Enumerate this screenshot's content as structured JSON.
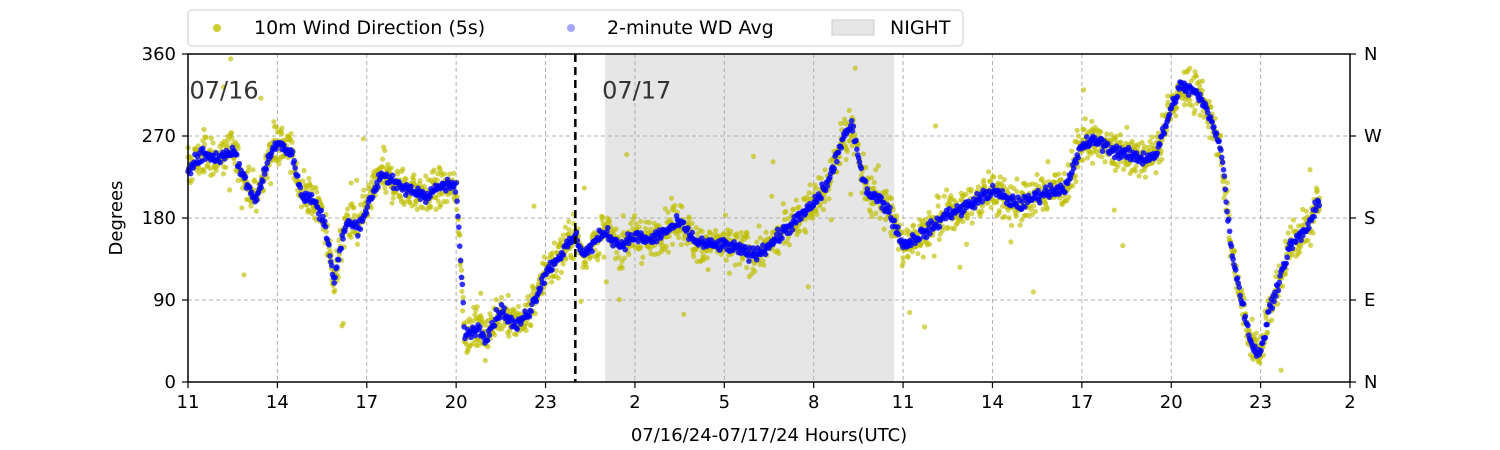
{
  "chart_data": {
    "type": "scatter",
    "xlabel": "07/16/24-07/17/24  Hours(UTC)",
    "ylabel": "Degrees",
    "x_unit": "hour_of_07/16 (UTC)",
    "xlim": [
      11,
      50
    ],
    "ylim": [
      0,
      360
    ],
    "x_tick_values": [
      11,
      14,
      17,
      20,
      23,
      26,
      29,
      32,
      35,
      38,
      41,
      44,
      47,
      50
    ],
    "x_tick_labels": [
      "11",
      "14",
      "17",
      "20",
      "23",
      "2",
      "5",
      "8",
      "11",
      "14",
      "17",
      "20",
      "23",
      "2"
    ],
    "y_ticks": [
      0,
      90,
      180,
      270,
      360
    ],
    "y_right_tick_labels": [
      "N",
      "E",
      "S",
      "W",
      "N"
    ],
    "grid": true,
    "legend_placement": "top",
    "date_annotations": [
      {
        "text": "07/16",
        "x": 11.05,
        "y": 320
      },
      {
        "text": "07/17",
        "x": 24.9,
        "y": 320
      }
    ],
    "day_divider_x": 24.0,
    "night_span": [
      25.0,
      34.7
    ],
    "legend": {
      "series1": "10m Wind Direction (5s)",
      "series2": "2-minute WD Avg",
      "night": "NIGHT"
    },
    "colors": {
      "wd5s": "#bfbf00",
      "avg": "#0000ff",
      "night": "#e6e6e6",
      "divider": "#000000"
    },
    "trend": [
      [
        11.0,
        235
      ],
      [
        11.5,
        250
      ],
      [
        12.0,
        245
      ],
      [
        12.5,
        255
      ],
      [
        13.0,
        215
      ],
      [
        13.3,
        200
      ],
      [
        13.7,
        245
      ],
      [
        14.0,
        265
      ],
      [
        14.5,
        250
      ],
      [
        14.8,
        205
      ],
      [
        15.2,
        200
      ],
      [
        15.6,
        175
      ],
      [
        15.9,
        110
      ],
      [
        16.3,
        175
      ],
      [
        16.7,
        170
      ],
      [
        17.0,
        190
      ],
      [
        17.5,
        230
      ],
      [
        18.0,
        215
      ],
      [
        18.5,
        210
      ],
      [
        19.0,
        205
      ],
      [
        19.5,
        215
      ],
      [
        20.0,
        215
      ],
      [
        20.3,
        50
      ],
      [
        20.7,
        60
      ],
      [
        21.0,
        50
      ],
      [
        21.5,
        80
      ],
      [
        22.0,
        60
      ],
      [
        22.5,
        80
      ],
      [
        23.0,
        120
      ],
      [
        23.5,
        140
      ],
      [
        24.0,
        160
      ],
      [
        24.3,
        140
      ],
      [
        24.7,
        155
      ],
      [
        25.0,
        165
      ],
      [
        25.5,
        150
      ],
      [
        26.0,
        160
      ],
      [
        26.5,
        155
      ],
      [
        27.0,
        165
      ],
      [
        27.5,
        175
      ],
      [
        28.0,
        155
      ],
      [
        28.5,
        150
      ],
      [
        29.0,
        150
      ],
      [
        29.5,
        145
      ],
      [
        30.0,
        140
      ],
      [
        30.5,
        150
      ],
      [
        31.0,
        165
      ],
      [
        31.5,
        180
      ],
      [
        32.0,
        195
      ],
      [
        32.5,
        220
      ],
      [
        33.0,
        270
      ],
      [
        33.3,
        280
      ],
      [
        33.5,
        245
      ],
      [
        33.8,
        210
      ],
      [
        34.2,
        200
      ],
      [
        34.5,
        190
      ],
      [
        35.0,
        150
      ],
      [
        35.5,
        160
      ],
      [
        36.0,
        170
      ],
      [
        36.5,
        185
      ],
      [
        37.0,
        190
      ],
      [
        37.5,
        200
      ],
      [
        38.0,
        210
      ],
      [
        38.5,
        200
      ],
      [
        39.0,
        195
      ],
      [
        39.5,
        205
      ],
      [
        40.0,
        210
      ],
      [
        40.5,
        215
      ],
      [
        41.0,
        260
      ],
      [
        41.5,
        265
      ],
      [
        42.0,
        255
      ],
      [
        42.5,
        250
      ],
      [
        43.0,
        245
      ],
      [
        43.5,
        250
      ],
      [
        44.0,
        300
      ],
      [
        44.3,
        325
      ],
      [
        44.7,
        320
      ],
      [
        45.0,
        310
      ],
      [
        45.4,
        285
      ],
      [
        45.7,
        250
      ],
      [
        46.0,
        150
      ],
      [
        46.3,
        100
      ],
      [
        46.7,
        40
      ],
      [
        47.0,
        30
      ],
      [
        47.3,
        80
      ],
      [
        47.7,
        120
      ],
      [
        48.0,
        150
      ],
      [
        48.5,
        165
      ],
      [
        49.0,
        200
      ]
    ]
  }
}
